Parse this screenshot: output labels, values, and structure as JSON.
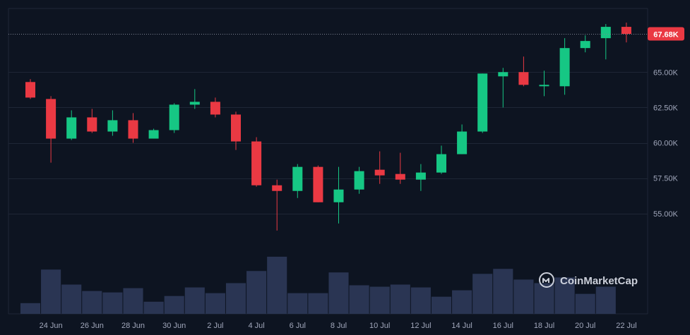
{
  "colors": {
    "background": "#0d1421",
    "grid": "#1e2636",
    "up": "#16c784",
    "down": "#ea3943",
    "volume": "#2a3553",
    "axis_text": "#a1a7bb",
    "price_line": "#7d8392"
  },
  "watermark": {
    "brand": "CoinMarketCap",
    "icon": "coinmarketcap-logo-icon"
  },
  "current_price": {
    "label": "67.68K",
    "value": 67680
  },
  "chart_data": {
    "type": "candlestick",
    "title": "",
    "xlabel": "",
    "ylabel": "",
    "ylim": [
      52000,
      69500
    ],
    "y_ticks": [
      55000,
      57500,
      60000,
      62500,
      65000
    ],
    "y_tick_labels": [
      "55.00K",
      "57.50K",
      "60.00K",
      "62.50K",
      "65.00K"
    ],
    "x_tick_labels": [
      "24 Jun",
      "26 Jun",
      "28 Jun",
      "30 Jun",
      "2 Jul",
      "4 Jul",
      "6 Jul",
      "8 Jul",
      "10 Jul",
      "12 Jul",
      "14 Jul",
      "16 Jul",
      "18 Jul",
      "20 Jul",
      "22 Jul"
    ],
    "grid": true,
    "candles": [
      {
        "date": "23 Jun",
        "open": 64300,
        "high": 64500,
        "low": 63100,
        "close": 63200,
        "volume": 15
      },
      {
        "date": "24 Jun",
        "open": 63100,
        "high": 63300,
        "low": 58600,
        "close": 60300,
        "volume": 62
      },
      {
        "date": "25 Jun",
        "open": 60300,
        "high": 62300,
        "low": 60200,
        "close": 61800,
        "volume": 41
      },
      {
        "date": "26 Jun",
        "open": 61800,
        "high": 62400,
        "low": 60700,
        "close": 60800,
        "volume": 32
      },
      {
        "date": "27 Jun",
        "open": 60800,
        "high": 62300,
        "low": 60500,
        "close": 61600,
        "volume": 30
      },
      {
        "date": "28 Jun",
        "open": 61600,
        "high": 62100,
        "low": 60000,
        "close": 60300,
        "volume": 36
      },
      {
        "date": "29 Jun",
        "open": 60300,
        "high": 61000,
        "low": 60300,
        "close": 60900,
        "volume": 17
      },
      {
        "date": "30 Jun",
        "open": 60900,
        "high": 62800,
        "low": 60700,
        "close": 62700,
        "volume": 25
      },
      {
        "date": "1 Jul",
        "open": 62700,
        "high": 63800,
        "low": 62400,
        "close": 62900,
        "volume": 37
      },
      {
        "date": "2 Jul",
        "open": 62900,
        "high": 63200,
        "low": 61800,
        "close": 62000,
        "volume": 29
      },
      {
        "date": "3 Jul",
        "open": 62000,
        "high": 62200,
        "low": 59500,
        "close": 60100,
        "volume": 43
      },
      {
        "date": "4 Jul",
        "open": 60100,
        "high": 60400,
        "low": 56900,
        "close": 57000,
        "volume": 60
      },
      {
        "date": "5 Jul",
        "open": 57000,
        "high": 57400,
        "low": 53800,
        "close": 56600,
        "volume": 80
      },
      {
        "date": "6 Jul",
        "open": 56600,
        "high": 58500,
        "low": 56100,
        "close": 58300,
        "volume": 29
      },
      {
        "date": "7 Jul",
        "open": 58300,
        "high": 58400,
        "low": 55800,
        "close": 55800,
        "volume": 29
      },
      {
        "date": "8 Jul",
        "open": 55800,
        "high": 58300,
        "low": 54300,
        "close": 56700,
        "volume": 58
      },
      {
        "date": "9 Jul",
        "open": 56700,
        "high": 58300,
        "low": 56400,
        "close": 58000,
        "volume": 40
      },
      {
        "date": "10 Jul",
        "open": 58100,
        "high": 59400,
        "low": 57100,
        "close": 57700,
        "volume": 38
      },
      {
        "date": "11 Jul",
        "open": 57800,
        "high": 59300,
        "low": 57100,
        "close": 57400,
        "volume": 41
      },
      {
        "date": "12 Jul",
        "open": 57400,
        "high": 58500,
        "low": 56600,
        "close": 57900,
        "volume": 37
      },
      {
        "date": "13 Jul",
        "open": 57900,
        "high": 59800,
        "low": 57800,
        "close": 59200,
        "volume": 24
      },
      {
        "date": "14 Jul",
        "open": 59200,
        "high": 61300,
        "low": 59200,
        "close": 60800,
        "volume": 33
      },
      {
        "date": "15 Jul",
        "open": 60800,
        "high": 64900,
        "low": 60700,
        "close": 64900,
        "volume": 56
      },
      {
        "date": "16 Jul",
        "open": 64700,
        "high": 65300,
        "low": 62500,
        "close": 65000,
        "volume": 63
      },
      {
        "date": "17 Jul",
        "open": 65000,
        "high": 66100,
        "low": 64000,
        "close": 64100,
        "volume": 48
      },
      {
        "date": "18 Jul",
        "open": 64100,
        "high": 65100,
        "low": 63300,
        "close": 64100,
        "volume": 43
      },
      {
        "date": "19 Jul",
        "open": 64000,
        "high": 67400,
        "low": 63400,
        "close": 66700,
        "volume": 51
      },
      {
        "date": "20 Jul",
        "open": 66700,
        "high": 67600,
        "low": 66400,
        "close": 67200,
        "volume": 28
      },
      {
        "date": "21 Jul",
        "open": 67400,
        "high": 68400,
        "low": 65900,
        "close": 68200,
        "volume": 38
      },
      {
        "date": "22 Jul",
        "open": 68200,
        "high": 68500,
        "low": 67100,
        "close": 67700,
        "volume": 0
      }
    ]
  }
}
